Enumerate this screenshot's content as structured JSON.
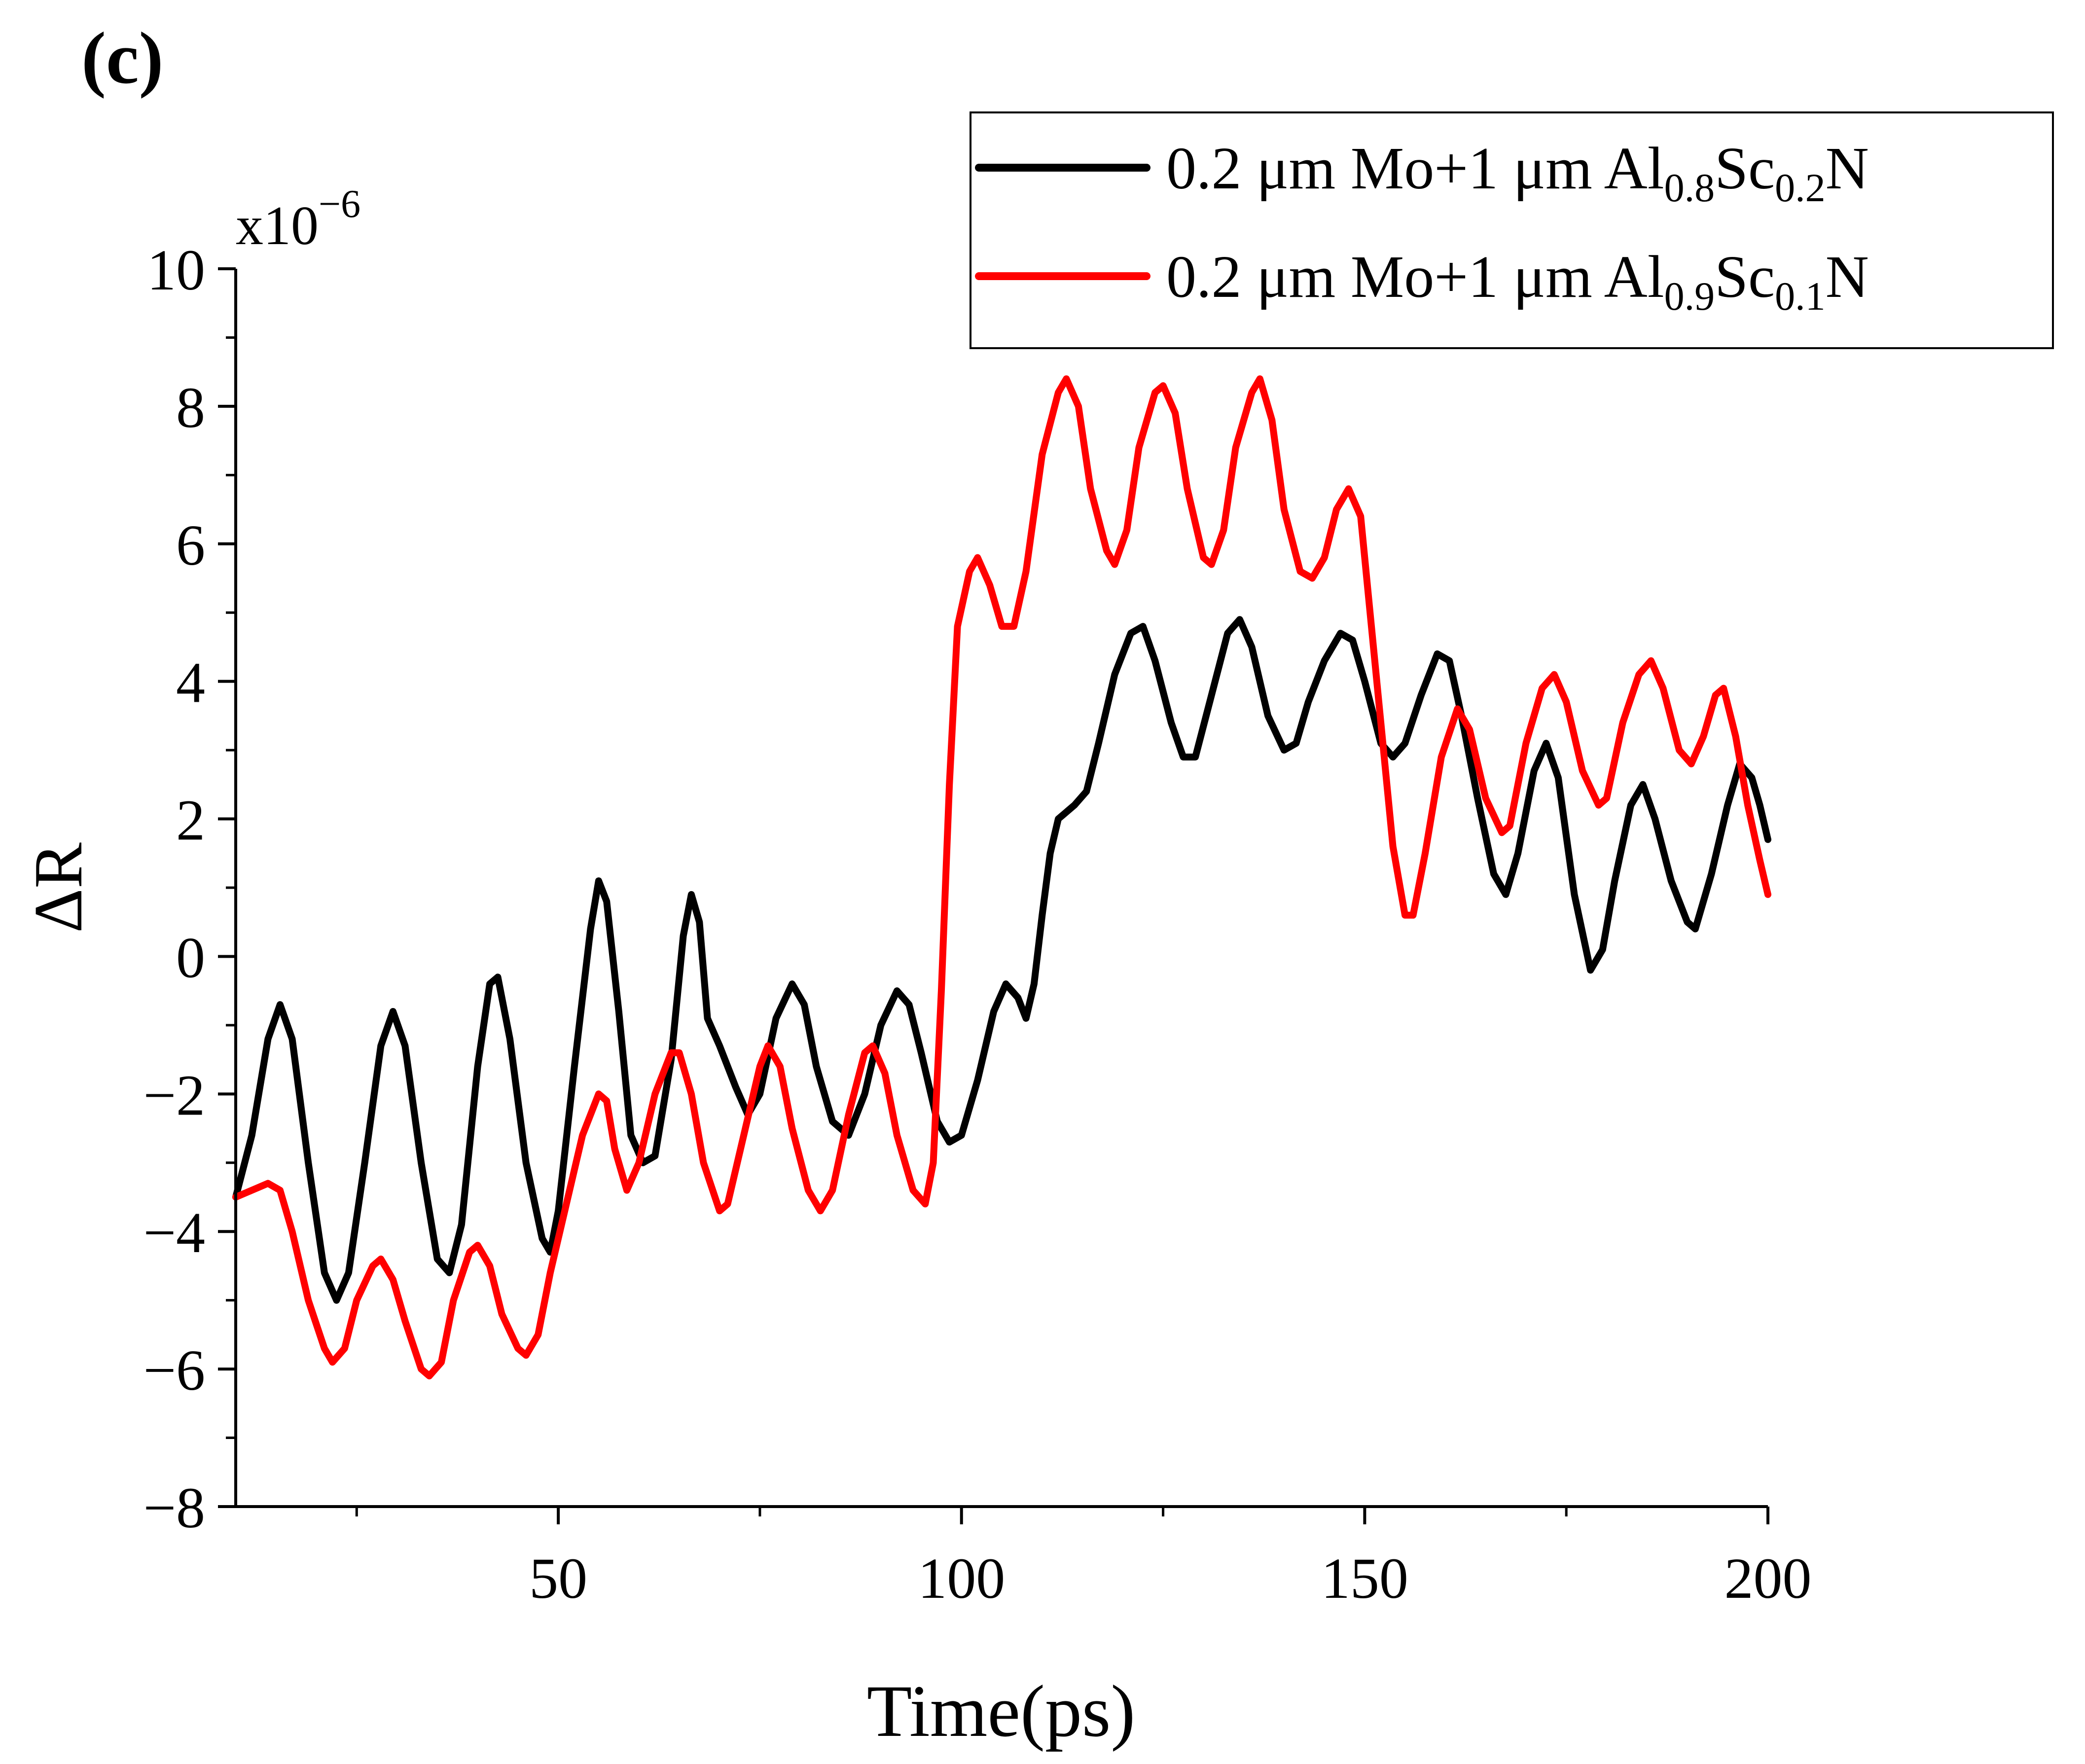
{
  "panel_label": "(c)",
  "chart_data": {
    "type": "line",
    "title": "",
    "xlabel": "Time(ps)",
    "ylabel": "ΔR",
    "y_multiplier": "x10",
    "y_multiplier_exp": "−6",
    "xlim": [
      10,
      200
    ],
    "ylim": [
      -8,
      10
    ],
    "x_ticks": [
      50,
      100,
      150,
      200
    ],
    "x_tick_labels": [
      "50",
      "100",
      "150",
      "200"
    ],
    "y_ticks": [
      -8,
      -6,
      -4,
      -2,
      0,
      2,
      4,
      6,
      8,
      10
    ],
    "y_tick_labels": [
      "−8",
      "−6",
      "−4",
      "−2",
      "0",
      "2",
      "4",
      "6",
      "8",
      "10"
    ],
    "grid": false,
    "legend_position": "top-right",
    "series": [
      {
        "name": "0.2 μm Mo+1 μm Al0.8Sc0.2N",
        "legend_parts": {
          "a": "0.2 μm Mo+1 μm Al",
          "s1": "0.8",
          "b": "Sc",
          "s2": "0.2",
          "c": "N"
        },
        "color": "#000000",
        "points": [
          [
            10,
            -3.5
          ],
          [
            12,
            -2.6
          ],
          [
            14,
            -1.2
          ],
          [
            15.5,
            -0.7
          ],
          [
            17,
            -1.2
          ],
          [
            19,
            -3.0
          ],
          [
            21,
            -4.6
          ],
          [
            22.5,
            -5.0
          ],
          [
            24,
            -4.6
          ],
          [
            26,
            -3.0
          ],
          [
            28,
            -1.3
          ],
          [
            29.5,
            -0.8
          ],
          [
            31,
            -1.3
          ],
          [
            33,
            -3.0
          ],
          [
            35,
            -4.4
          ],
          [
            36.5,
            -4.6
          ],
          [
            38,
            -3.9
          ],
          [
            40,
            -1.6
          ],
          [
            41.5,
            -0.4
          ],
          [
            42.5,
            -0.3
          ],
          [
            44,
            -1.2
          ],
          [
            46,
            -3.0
          ],
          [
            48,
            -4.1
          ],
          [
            49,
            -4.3
          ],
          [
            50,
            -3.7
          ],
          [
            52,
            -1.6
          ],
          [
            54,
            0.4
          ],
          [
            55,
            1.1
          ],
          [
            56,
            0.8
          ],
          [
            57.5,
            -0.8
          ],
          [
            59,
            -2.6
          ],
          [
            60.5,
            -3.0
          ],
          [
            62,
            -2.9
          ],
          [
            64,
            -1.5
          ],
          [
            65.5,
            0.3
          ],
          [
            66.5,
            0.9
          ],
          [
            67.5,
            0.5
          ],
          [
            68.5,
            -0.9
          ],
          [
            70,
            -1.3
          ],
          [
            72,
            -1.9
          ],
          [
            73.5,
            -2.3
          ],
          [
            75,
            -2.0
          ],
          [
            77,
            -0.9
          ],
          [
            79,
            -0.4
          ],
          [
            80.5,
            -0.7
          ],
          [
            82,
            -1.6
          ],
          [
            84,
            -2.4
          ],
          [
            86,
            -2.6
          ],
          [
            88,
            -2.0
          ],
          [
            90,
            -1.0
          ],
          [
            92,
            -0.5
          ],
          [
            93.5,
            -0.7
          ],
          [
            95,
            -1.4
          ],
          [
            97,
            -2.4
          ],
          [
            98.5,
            -2.7
          ],
          [
            100,
            -2.6
          ],
          [
            102,
            -1.8
          ],
          [
            104,
            -0.8
          ],
          [
            105.5,
            -0.4
          ],
          [
            107,
            -0.6
          ],
          [
            108,
            -0.9
          ],
          [
            109,
            -0.4
          ],
          [
            110,
            0.6
          ],
          [
            111,
            1.5
          ],
          [
            112,
            2.0
          ],
          [
            114,
            2.2
          ],
          [
            115.5,
            2.4
          ],
          [
            117,
            3.1
          ],
          [
            119,
            4.1
          ],
          [
            121,
            4.7
          ],
          [
            122.5,
            4.8
          ],
          [
            124,
            4.3
          ],
          [
            126,
            3.4
          ],
          [
            127.5,
            2.9
          ],
          [
            129,
            2.9
          ],
          [
            131,
            3.8
          ],
          [
            133,
            4.7
          ],
          [
            134.5,
            4.9
          ],
          [
            136,
            4.5
          ],
          [
            138,
            3.5
          ],
          [
            140,
            3.0
          ],
          [
            141.5,
            3.1
          ],
          [
            143,
            3.7
          ],
          [
            145,
            4.3
          ],
          [
            147,
            4.7
          ],
          [
            148.5,
            4.6
          ],
          [
            150,
            4.0
          ],
          [
            152,
            3.1
          ],
          [
            153.5,
            2.9
          ],
          [
            155,
            3.1
          ],
          [
            157,
            3.8
          ],
          [
            159,
            4.4
          ],
          [
            160.5,
            4.3
          ],
          [
            162,
            3.5
          ],
          [
            164,
            2.3
          ],
          [
            166,
            1.2
          ],
          [
            167.5,
            0.9
          ],
          [
            169,
            1.5
          ],
          [
            171,
            2.7
          ],
          [
            172.5,
            3.1
          ],
          [
            174,
            2.6
          ],
          [
            176,
            0.9
          ],
          [
            178,
            -0.2
          ],
          [
            179.5,
            0.1
          ],
          [
            181,
            1.1
          ],
          [
            183,
            2.2
          ],
          [
            184.5,
            2.5
          ],
          [
            186,
            2.0
          ],
          [
            188,
            1.1
          ],
          [
            190,
            0.5
          ],
          [
            191,
            0.4
          ],
          [
            193,
            1.2
          ],
          [
            195,
            2.2
          ],
          [
            196.5,
            2.8
          ],
          [
            198,
            2.6
          ],
          [
            199,
            2.2
          ],
          [
            200,
            1.7
          ]
        ]
      },
      {
        "name": "0.2 μm Mo+1 μm Al0.9Sc0.1N",
        "legend_parts": {
          "a": "0.2 μm Mo+1 μm Al",
          "s1": "0.9",
          "b": "Sc",
          "s2": "0.1",
          "c": "N"
        },
        "color": "#ff0000",
        "points": [
          [
            10,
            -3.5
          ],
          [
            12,
            -3.4
          ],
          [
            14,
            -3.3
          ],
          [
            15.5,
            -3.4
          ],
          [
            17,
            -4.0
          ],
          [
            19,
            -5.0
          ],
          [
            21,
            -5.7
          ],
          [
            22,
            -5.9
          ],
          [
            23.5,
            -5.7
          ],
          [
            25,
            -5.0
          ],
          [
            27,
            -4.5
          ],
          [
            28,
            -4.4
          ],
          [
            29.5,
            -4.7
          ],
          [
            31,
            -5.3
          ],
          [
            33,
            -6.0
          ],
          [
            34,
            -6.1
          ],
          [
            35.5,
            -5.9
          ],
          [
            37,
            -5.0
          ],
          [
            39,
            -4.3
          ],
          [
            40,
            -4.2
          ],
          [
            41.5,
            -4.5
          ],
          [
            43,
            -5.2
          ],
          [
            45,
            -5.7
          ],
          [
            46,
            -5.8
          ],
          [
            47.5,
            -5.5
          ],
          [
            49,
            -4.6
          ],
          [
            51,
            -3.6
          ],
          [
            53,
            -2.6
          ],
          [
            55,
            -2.0
          ],
          [
            56,
            -2.1
          ],
          [
            57,
            -2.8
          ],
          [
            58.5,
            -3.4
          ],
          [
            60,
            -3.0
          ],
          [
            62,
            -2.0
          ],
          [
            64,
            -1.4
          ],
          [
            65,
            -1.4
          ],
          [
            66.5,
            -2.0
          ],
          [
            68,
            -3.0
          ],
          [
            70,
            -3.7
          ],
          [
            71,
            -3.6
          ],
          [
            73,
            -2.6
          ],
          [
            75,
            -1.6
          ],
          [
            76,
            -1.3
          ],
          [
            77.5,
            -1.6
          ],
          [
            79,
            -2.5
          ],
          [
            81,
            -3.4
          ],
          [
            82.5,
            -3.7
          ],
          [
            84,
            -3.4
          ],
          [
            86,
            -2.3
          ],
          [
            88,
            -1.4
          ],
          [
            89,
            -1.3
          ],
          [
            90.5,
            -1.7
          ],
          [
            92,
            -2.6
          ],
          [
            94,
            -3.4
          ],
          [
            95.5,
            -3.6
          ],
          [
            96.5,
            -3.0
          ],
          [
            97.5,
            -0.5
          ],
          [
            98.5,
            2.5
          ],
          [
            99.5,
            4.8
          ],
          [
            101,
            5.6
          ],
          [
            102,
            5.8
          ],
          [
            103.5,
            5.4
          ],
          [
            105,
            4.8
          ],
          [
            106.5,
            4.8
          ],
          [
            108,
            5.6
          ],
          [
            110,
            7.3
          ],
          [
            112,
            8.2
          ],
          [
            113,
            8.4
          ],
          [
            114.5,
            8.0
          ],
          [
            116,
            6.8
          ],
          [
            118,
            5.9
          ],
          [
            119,
            5.7
          ],
          [
            120.5,
            6.2
          ],
          [
            122,
            7.4
          ],
          [
            124,
            8.2
          ],
          [
            125,
            8.3
          ],
          [
            126.5,
            7.9
          ],
          [
            128,
            6.8
          ],
          [
            130,
            5.8
          ],
          [
            131,
            5.7
          ],
          [
            132.5,
            6.2
          ],
          [
            134,
            7.4
          ],
          [
            136,
            8.2
          ],
          [
            137,
            8.4
          ],
          [
            138.5,
            7.8
          ],
          [
            140,
            6.5
          ],
          [
            142,
            5.6
          ],
          [
            143.5,
            5.5
          ],
          [
            145,
            5.8
          ],
          [
            146.5,
            6.5
          ],
          [
            148,
            6.8
          ],
          [
            149.5,
            6.4
          ],
          [
            150.5,
            5.2
          ],
          [
            152,
            3.4
          ],
          [
            153.5,
            1.6
          ],
          [
            155,
            0.6
          ],
          [
            156,
            0.6
          ],
          [
            157.5,
            1.5
          ],
          [
            159.5,
            2.9
          ],
          [
            161.5,
            3.6
          ],
          [
            163,
            3.3
          ],
          [
            165,
            2.3
          ],
          [
            167,
            1.8
          ],
          [
            168,
            1.9
          ],
          [
            170,
            3.1
          ],
          [
            172,
            3.9
          ],
          [
            173.5,
            4.1
          ],
          [
            175,
            3.7
          ],
          [
            177,
            2.7
          ],
          [
            179,
            2.2
          ],
          [
            180,
            2.3
          ],
          [
            182,
            3.4
          ],
          [
            184,
            4.1
          ],
          [
            185.5,
            4.3
          ],
          [
            187,
            3.9
          ],
          [
            189,
            3.0
          ],
          [
            190.5,
            2.8
          ],
          [
            192,
            3.2
          ],
          [
            193.5,
            3.8
          ],
          [
            194.5,
            3.9
          ],
          [
            196,
            3.2
          ],
          [
            197.5,
            2.2
          ],
          [
            199,
            1.4
          ],
          [
            200,
            0.9
          ]
        ]
      }
    ]
  }
}
